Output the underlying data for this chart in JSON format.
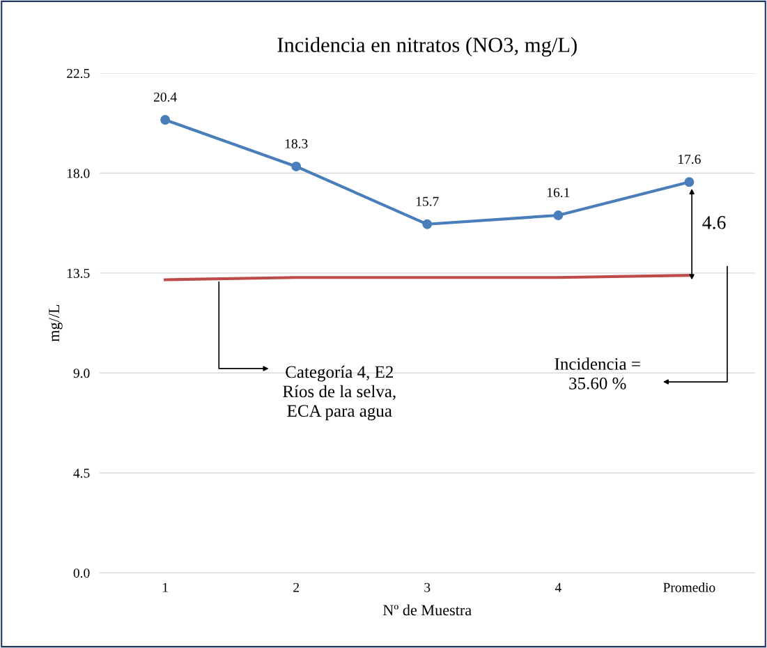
{
  "chart_data": {
    "type": "line",
    "title": "Incidencia en nitratos (NO3, mg/L)",
    "xlabel": "Nº de Muestra",
    "ylabel": "mg//L",
    "categories": [
      "1",
      "2",
      "3",
      "4",
      "Promedio"
    ],
    "series": [
      {
        "color": "#4a7ebb",
        "values": [
          20.4,
          18.3,
          15.7,
          16.1,
          17.6
        ],
        "marker": "circle",
        "data_labels": true
      },
      {
        "color": "#be4b48",
        "values": [
          13.2,
          13.3,
          13.3,
          13.3,
          13.4
        ],
        "marker": "none"
      }
    ],
    "ylim": [
      0,
      22.5
    ],
    "yticks": [
      {
        "value": 0,
        "label": "0.0"
      },
      {
        "value": 4.5,
        "label": "4.5"
      },
      {
        "value": 9,
        "label": "9.0"
      },
      {
        "value": 13.5,
        "label": "13.5"
      },
      {
        "value": 18,
        "label": "18.0"
      },
      {
        "value": 22.5,
        "label": "22.5"
      }
    ],
    "grid": "y",
    "legend": false,
    "line_style": "solid",
    "annotations": [
      "Categoría 4, E2\nRíos de la selva,\nECA para agua",
      "Incidencia =\n35.60 %",
      "4.6"
    ]
  }
}
